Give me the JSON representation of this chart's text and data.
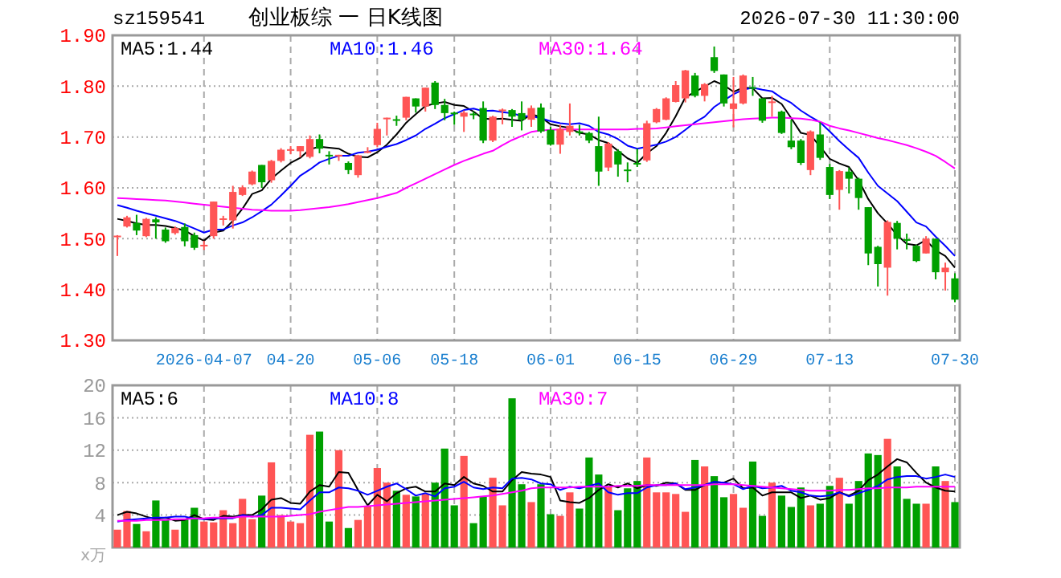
{
  "chart_data": [
    {
      "type": "candlestick",
      "title": "创业板综 一 日K线图",
      "annotations": [
        "sz159541",
        "2026-07-30 11:30:00"
      ],
      "categories": [
        null,
        null,
        null,
        null,
        null,
        null,
        null,
        null,
        null,
        "2026-04-07",
        null,
        null,
        null,
        null,
        null,
        null,
        null,
        null,
        "04-20",
        null,
        null,
        null,
        null,
        null,
        null,
        null,
        null,
        "05-06",
        null,
        null,
        null,
        null,
        null,
        null,
        null,
        "05-18",
        null,
        null,
        null,
        null,
        null,
        null,
        null,
        null,
        null,
        "06-01",
        null,
        null,
        null,
        null,
        null,
        null,
        null,
        null,
        "06-15",
        null,
        null,
        null,
        null,
        null,
        null,
        null,
        null,
        null,
        "06-29",
        null,
        null,
        null,
        null,
        null,
        null,
        null,
        null,
        null,
        "07-13",
        null,
        null,
        null,
        null,
        null,
        null,
        null,
        null,
        null,
        null,
        null,
        null,
        "07-30"
      ],
      "ohlc": [
        [
          1.503,
          1.507,
          1.466,
          1.506
        ],
        [
          1.524,
          1.545,
          1.522,
          1.542
        ],
        [
          1.531,
          1.547,
          1.507,
          1.516
        ],
        [
          1.505,
          1.541,
          1.503,
          1.539
        ],
        [
          1.538,
          1.542,
          1.5,
          1.532
        ],
        [
          1.518,
          1.522,
          1.492,
          1.495
        ],
        [
          1.511,
          1.524,
          1.508,
          1.521
        ],
        [
          1.523,
          1.53,
          1.485,
          1.495
        ],
        [
          1.507,
          1.512,
          1.478,
          1.482
        ],
        [
          1.486,
          1.496,
          1.478,
          1.488
        ],
        [
          1.505,
          1.573,
          1.5,
          1.573
        ],
        [
          1.538,
          1.545,
          1.526,
          1.54
        ],
        [
          1.536,
          1.604,
          1.52,
          1.592
        ],
        [
          1.586,
          1.605,
          1.584,
          1.601
        ],
        [
          1.607,
          1.634,
          1.605,
          1.632
        ],
        [
          1.645,
          1.645,
          1.6,
          1.611
        ],
        [
          1.615,
          1.655,
          1.61,
          1.653
        ],
        [
          1.653,
          1.678,
          1.65,
          1.675
        ],
        [
          1.674,
          1.682,
          1.666,
          1.676
        ],
        [
          1.672,
          1.682,
          1.66,
          1.682
        ],
        [
          1.661,
          1.703,
          1.658,
          1.696
        ],
        [
          1.696,
          1.705,
          1.668,
          1.677
        ],
        [
          1.665,
          1.672,
          1.646,
          1.663
        ],
        [
          1.663,
          1.665,
          1.653,
          1.665
        ],
        [
          1.649,
          1.652,
          1.627,
          1.635
        ],
        [
          1.625,
          1.665,
          1.62,
          1.664
        ],
        [
          1.67,
          1.68,
          1.668,
          1.672
        ],
        [
          1.684,
          1.728,
          1.68,
          1.716
        ],
        [
          1.736,
          1.738,
          1.703,
          1.738
        ],
        [
          1.735,
          1.742,
          1.722,
          1.733
        ],
        [
          1.738,
          1.779,
          1.733,
          1.779
        ],
        [
          1.776,
          1.776,
          1.748,
          1.76
        ],
        [
          1.76,
          1.797,
          1.75,
          1.797
        ],
        [
          1.807,
          1.81,
          1.755,
          1.763
        ],
        [
          1.763,
          1.775,
          1.733,
          1.747
        ],
        [
          1.748,
          1.75,
          1.724,
          1.746
        ],
        [
          1.74,
          1.752,
          1.71,
          1.748
        ],
        [
          1.746,
          1.75,
          1.735,
          1.744
        ],
        [
          1.757,
          1.77,
          1.688,
          1.693
        ],
        [
          1.693,
          1.742,
          1.69,
          1.74
        ],
        [
          1.752,
          1.756,
          1.725,
          1.754
        ],
        [
          1.753,
          1.755,
          1.72,
          1.74
        ],
        [
          1.747,
          1.77,
          1.713,
          1.734
        ],
        [
          1.734,
          1.762,
          1.72,
          1.757
        ],
        [
          1.758,
          1.766,
          1.708,
          1.711
        ],
        [
          1.714,
          1.72,
          1.683,
          1.685
        ],
        [
          1.685,
          1.724,
          1.667,
          1.716
        ],
        [
          1.71,
          1.766,
          1.703,
          1.722
        ],
        [
          1.711,
          1.724,
          1.703,
          1.708
        ],
        [
          1.708,
          1.71,
          1.688,
          1.693
        ],
        [
          1.682,
          1.74,
          1.604,
          1.632
        ],
        [
          1.64,
          1.69,
          1.633,
          1.687
        ],
        [
          1.672,
          1.676,
          1.622,
          1.646
        ],
        [
          1.636,
          1.65,
          1.611,
          1.634
        ],
        [
          1.649,
          1.677,
          1.641,
          1.647
        ],
        [
          1.654,
          1.732,
          1.651,
          1.727
        ],
        [
          1.729,
          1.757,
          1.727,
          1.755
        ],
        [
          1.734,
          1.778,
          1.733,
          1.776
        ],
        [
          1.769,
          1.81,
          1.768,
          1.802
        ],
        [
          1.776,
          1.832,
          1.768,
          1.831
        ],
        [
          1.821,
          1.826,
          1.778,
          1.781
        ],
        [
          1.781,
          1.806,
          1.77,
          1.804
        ],
        [
          1.857,
          1.878,
          1.826,
          1.83
        ],
        [
          1.823,
          1.823,
          1.76,
          1.766
        ],
        [
          1.755,
          1.818,
          1.719,
          1.766
        ],
        [
          1.766,
          1.823,
          1.764,
          1.821
        ],
        [
          1.798,
          1.818,
          1.781,
          1.796
        ],
        [
          1.776,
          1.776,
          1.728,
          1.732
        ],
        [
          1.768,
          1.781,
          1.74,
          1.77
        ],
        [
          1.75,
          1.752,
          1.706,
          1.708
        ],
        [
          1.693,
          1.734,
          1.676,
          1.68
        ],
        [
          1.693,
          1.696,
          1.645,
          1.649
        ],
        [
          1.635,
          1.713,
          1.625,
          1.711
        ],
        [
          1.705,
          1.729,
          1.655,
          1.659
        ],
        [
          1.641,
          1.647,
          1.578,
          1.586
        ],
        [
          1.596,
          1.635,
          1.557,
          1.633
        ],
        [
          1.632,
          1.64,
          1.589,
          1.618
        ],
        [
          1.618,
          1.62,
          1.557,
          1.58
        ],
        [
          1.562,
          1.562,
          1.448,
          1.471
        ],
        [
          1.484,
          1.486,
          1.406,
          1.45
        ],
        [
          1.443,
          1.536,
          1.388,
          1.533
        ],
        [
          1.531,
          1.535,
          1.479,
          1.5
        ],
        [
          1.499,
          1.51,
          1.479,
          1.497
        ],
        [
          1.486,
          1.488,
          1.454,
          1.456
        ],
        [
          1.471,
          1.505,
          1.471,
          1.5
        ],
        [
          1.5,
          1.5,
          1.42,
          1.434
        ],
        [
          1.434,
          1.453,
          1.398,
          1.443
        ],
        [
          1.422,
          1.432,
          1.375,
          1.38
        ]
      ],
      "colors": [
        "#ff5555",
        "#ff5555",
        "#00a000",
        "#ff5555",
        "#00a000",
        "#00a000",
        "#ff5555",
        "#00a000",
        "#00a000",
        "#ff5555",
        "#ff5555",
        "#ff5555",
        "#ff5555",
        "#ff5555",
        "#ff5555",
        "#00a000",
        "#ff5555",
        "#ff5555",
        "#ff5555",
        "#ff5555",
        "#ff5555",
        "#00a000",
        "#00a000",
        "#ff5555",
        "#00a000",
        "#ff5555",
        "#ff5555",
        "#ff5555",
        "#ff5555",
        "#00a000",
        "#ff5555",
        "#00a000",
        "#ff5555",
        "#00a000",
        "#00a000",
        "#00a000",
        "#ff5555",
        "#00a000",
        "#00a000",
        "#ff5555",
        "#ff5555",
        "#00a000",
        "#00a000",
        "#ff5555",
        "#00a000",
        "#00a000",
        "#ff5555",
        "#ff5555",
        "#00a000",
        "#00a000",
        "#00a000",
        "#ff5555",
        "#00a000",
        "#00a000",
        "#00a000",
        "#ff5555",
        "#ff5555",
        "#ff5555",
        "#ff5555",
        "#ff5555",
        "#00a000",
        "#ff5555",
        "#00a000",
        "#00a000",
        "#ff5555",
        "#ff5555",
        "#00a000",
        "#00a000",
        "#ff5555",
        "#00a000",
        "#00a000",
        "#00a000",
        "#ff5555",
        "#00a000",
        "#00a000",
        "#ff5555",
        "#00a000",
        "#00a000",
        "#00a000",
        "#00a000",
        "#ff5555",
        "#00a000",
        "#00a000",
        "#00a000",
        "#ff5555",
        "#00a000",
        "#ff5555",
        "#00a000"
      ],
      "series": [
        {
          "type": "line",
          "name": "MA5:1.44",
          "color": "#000000",
          "values": [
            1.539,
            1.535,
            1.53,
            1.527,
            1.527,
            1.525,
            1.521,
            1.516,
            1.505,
            1.496,
            1.512,
            1.516,
            1.535,
            1.559,
            1.588,
            1.595,
            1.618,
            1.634,
            1.649,
            1.659,
            1.676,
            1.681,
            1.679,
            1.677,
            1.667,
            1.661,
            1.66,
            1.67,
            1.685,
            1.705,
            1.728,
            1.745,
            1.761,
            1.766,
            1.769,
            1.763,
            1.761,
            1.75,
            1.736,
            1.735,
            1.736,
            1.734,
            1.732,
            1.745,
            1.739,
            1.725,
            1.721,
            1.718,
            1.708,
            1.705,
            1.694,
            1.688,
            1.673,
            1.658,
            1.649,
            1.668,
            1.682,
            1.708,
            1.741,
            1.778,
            1.789,
            1.799,
            1.81,
            1.802,
            1.789,
            1.797,
            1.796,
            1.776,
            1.777,
            1.765,
            1.737,
            1.708,
            1.704,
            1.681,
            1.657,
            1.648,
            1.641,
            1.615,
            1.578,
            1.55,
            1.53,
            1.507,
            1.49,
            1.487,
            1.497,
            1.477,
            1.466,
            1.443
          ]
        },
        {
          "type": "line",
          "name": "MA10:1.46",
          "color": "#0000ff",
          "values": [
            1.566,
            1.561,
            1.555,
            1.55,
            1.545,
            1.54,
            1.535,
            1.528,
            1.52,
            1.512,
            1.518,
            1.518,
            1.526,
            1.532,
            1.542,
            1.554,
            1.567,
            1.585,
            1.604,
            1.624,
            1.636,
            1.65,
            1.657,
            1.663,
            1.663,
            1.669,
            1.671,
            1.675,
            1.681,
            1.686,
            1.694,
            1.703,
            1.716,
            1.726,
            1.737,
            1.745,
            1.753,
            1.756,
            1.751,
            1.752,
            1.749,
            1.747,
            1.741,
            1.741,
            1.737,
            1.731,
            1.727,
            1.725,
            1.727,
            1.722,
            1.71,
            1.705,
            1.696,
            1.683,
            1.677,
            1.681,
            1.685,
            1.691,
            1.7,
            1.714,
            1.729,
            1.74,
            1.759,
            1.772,
            1.784,
            1.793,
            1.797,
            1.793,
            1.79,
            1.777,
            1.767,
            1.752,
            1.74,
            1.729,
            1.711,
            1.692,
            1.675,
            1.659,
            1.63,
            1.604,
            1.589,
            1.574,
            1.553,
            1.532,
            1.524,
            1.504,
            1.486,
            1.466
          ]
        },
        {
          "type": "line",
          "name": "MA30:1.64",
          "color": "#ff00ff",
          "values": [
            1.58,
            1.579,
            1.578,
            1.577,
            1.576,
            1.575,
            1.573,
            1.571,
            1.569,
            1.567,
            1.565,
            1.563,
            1.561,
            1.559,
            1.557,
            1.556,
            1.555,
            1.555,
            1.555,
            1.556,
            1.558,
            1.56,
            1.562,
            1.565,
            1.568,
            1.572,
            1.576,
            1.58,
            1.585,
            1.59,
            1.6,
            1.609,
            1.618,
            1.627,
            1.636,
            1.645,
            1.653,
            1.66,
            1.667,
            1.673,
            1.684,
            1.694,
            1.702,
            1.71,
            1.713,
            1.714,
            1.715,
            1.715,
            1.715,
            1.715,
            1.715,
            1.715,
            1.715,
            1.715,
            1.716,
            1.716,
            1.717,
            1.719,
            1.721,
            1.723,
            1.725,
            1.727,
            1.729,
            1.731,
            1.733,
            1.735,
            1.736,
            1.737,
            1.738,
            1.738,
            1.737,
            1.736,
            1.734,
            1.73,
            1.722,
            1.717,
            1.713,
            1.708,
            1.703,
            1.698,
            1.694,
            1.689,
            1.684,
            1.678,
            1.671,
            1.663,
            1.651,
            1.638
          ]
        }
      ],
      "ylim": [
        1.3,
        1.9
      ],
      "yticks": [
        {
          "value": 1.3,
          "label": "1.30"
        },
        {
          "value": 1.4,
          "label": "1.40"
        },
        {
          "value": 1.5,
          "label": "1.50"
        },
        {
          "value": 1.6,
          "label": "1.60"
        },
        {
          "value": 1.7,
          "label": "1.70"
        },
        {
          "value": 1.8,
          "label": "1.80"
        },
        {
          "value": 1.9,
          "label": "1.90"
        }
      ],
      "grid": true,
      "legend": "top"
    },
    {
      "type": "bar",
      "ylabel": "x万",
      "categories": [
        null,
        null,
        null,
        null,
        null,
        null,
        null,
        null,
        null,
        null,
        null,
        null,
        null,
        null,
        null,
        null,
        null,
        null,
        null,
        null,
        null,
        null,
        null,
        null,
        null,
        null,
        null,
        null,
        null,
        null,
        null,
        null,
        null,
        null,
        null,
        null,
        null,
        null,
        null,
        null,
        null,
        null,
        null,
        null,
        null,
        null,
        null,
        null,
        null,
        null,
        null,
        null,
        null,
        null,
        null,
        null,
        null,
        null,
        null,
        null,
        null,
        null,
        null,
        null,
        null,
        null,
        null,
        null,
        null,
        null,
        null,
        null,
        null,
        null,
        null,
        null,
        null,
        null,
        null,
        null,
        null,
        null,
        null,
        null,
        null,
        null,
        null,
        null
      ],
      "series": [
        {
          "type": "bar",
          "colors": [
            "#ff5555",
            "#ff5555",
            "#00a000",
            "#ff5555",
            "#00a000",
            "#00a000",
            "#ff5555",
            "#00a000",
            "#00a000",
            "#ff5555",
            "#ff5555",
            "#ff5555",
            "#ff5555",
            "#ff5555",
            "#ff5555",
            "#00a000",
            "#ff5555",
            "#ff5555",
            "#ff5555",
            "#ff5555",
            "#ff5555",
            "#00a000",
            "#00a000",
            "#ff5555",
            "#00a000",
            "#ff5555",
            "#ff5555",
            "#ff5555",
            "#ff5555",
            "#00a000",
            "#ff5555",
            "#00a000",
            "#ff5555",
            "#00a000",
            "#00a000",
            "#00a000",
            "#ff5555",
            "#00a000",
            "#00a000",
            "#ff5555",
            "#ff5555",
            "#00a000",
            "#00a000",
            "#ff5555",
            "#00a000",
            "#00a000",
            "#ff5555",
            "#ff5555",
            "#00a000",
            "#00a000",
            "#00a000",
            "#ff5555",
            "#00a000",
            "#00a000",
            "#00a000",
            "#ff5555",
            "#ff5555",
            "#ff5555",
            "#ff5555",
            "#ff5555",
            "#00a000",
            "#ff5555",
            "#00a000",
            "#00a000",
            "#ff5555",
            "#ff5555",
            "#00a000",
            "#00a000",
            "#ff5555",
            "#00a000",
            "#00a000",
            "#00a000",
            "#ff5555",
            "#00a000",
            "#00a000",
            "#ff5555",
            "#00a000",
            "#00a000",
            "#00a000",
            "#00a000",
            "#ff5555",
            "#00a000",
            "#00a000",
            "#00a000",
            "#ff5555",
            "#00a000",
            "#ff5555",
            "#00a000"
          ],
          "values": [
            2.2,
            4.5,
            2.9,
            2.0,
            5.8,
            3.5,
            2.2,
            3.5,
            4.9,
            3.2,
            3.1,
            4.6,
            3.0,
            6.0,
            3.5,
            6.4,
            10.5,
            4.0,
            3.2,
            3.0,
            13.9,
            14.3,
            3.2,
            12.0,
            2.4,
            3.4,
            5.1,
            9.8,
            8.0,
            7.0,
            6.5,
            6.3,
            6.6,
            8.0,
            12.2,
            5.2,
            11.3,
            3.0,
            6.3,
            8.6,
            5.2,
            18.4,
            7.8,
            5.6,
            7.8,
            4.1,
            3.9,
            6.8,
            4.8,
            11.1,
            9.0,
            7.5,
            4.6,
            7.3,
            8.2,
            11.1,
            6.8,
            6.8,
            6.6,
            4.4,
            10.8,
            10.0,
            8.8,
            6.2,
            6.6,
            4.9,
            10.6,
            3.9,
            8.0,
            6.4,
            5.0,
            7.4,
            5.2,
            5.4,
            7.6,
            8.6,
            5.4,
            8.2,
            11.6,
            11.4,
            13.4,
            10.0,
            6.0,
            5.4,
            5.4,
            10.0,
            8.2,
            5.6
          ]
        },
        {
          "type": "line",
          "name": "MA5:6",
          "color": "#000000",
          "values": [
            4.0,
            4.4,
            4.2,
            3.8,
            3.5,
            3.7,
            3.3,
            3.4,
            4.0,
            3.5,
            3.4,
            3.9,
            3.8,
            4.0,
            4.0,
            4.7,
            5.9,
            6.1,
            5.5,
            5.4,
            6.9,
            7.7,
            7.5,
            9.3,
            9.2,
            7.1,
            5.2,
            6.5,
            5.7,
            6.7,
            7.3,
            7.5,
            6.9,
            6.9,
            7.9,
            7.7,
            8.7,
            7.9,
            7.6,
            6.9,
            6.9,
            8.3,
            9.3,
            9.1,
            9.0,
            8.7,
            5.8,
            5.6,
            5.5,
            6.1,
            7.1,
            7.8,
            7.4,
            7.9,
            7.3,
            7.7,
            7.6,
            8.0,
            7.9,
            7.1,
            7.1,
            7.7,
            8.1,
            8.0,
            8.5,
            7.3,
            7.4,
            6.4,
            6.8,
            6.8,
            6.8,
            6.1,
            6.4,
            5.9,
            6.1,
            6.8,
            6.4,
            7.0,
            8.3,
            9.0,
            10.0,
            10.9,
            10.5,
            9.2,
            8.0,
            7.4,
            7.0,
            6.9
          ]
        },
        {
          "type": "line",
          "name": "MA10:8",
          "color": "#0000ff",
          "values": [
            3.2,
            3.4,
            3.5,
            3.6,
            3.7,
            3.7,
            3.8,
            3.8,
            3.6,
            3.5,
            3.6,
            3.6,
            3.6,
            4.0,
            3.8,
            4.0,
            4.9,
            4.9,
            4.8,
            4.7,
            5.8,
            6.8,
            6.8,
            7.4,
            7.3,
            7.0,
            6.5,
            7.0,
            7.5,
            7.9,
            7.2,
            6.4,
            6.7,
            6.3,
            7.3,
            7.5,
            8.1,
            7.4,
            7.2,
            7.4,
            7.3,
            8.5,
            8.6,
            8.4,
            7.9,
            7.8,
            7.1,
            7.5,
            7.3,
            7.6,
            7.9,
            6.8,
            6.5,
            6.7,
            6.7,
            7.4,
            7.7,
            7.7,
            7.9,
            7.2,
            7.4,
            7.7,
            8.1,
            8.0,
            7.8,
            7.2,
            7.6,
            7.3,
            7.4,
            7.6,
            7.0,
            6.8,
            6.4,
            6.3,
            6.4,
            6.8,
            6.3,
            6.7,
            7.1,
            7.6,
            8.4,
            8.7,
            8.8,
            8.8,
            8.5,
            8.7,
            9.0,
            8.7
          ]
        },
        {
          "type": "line",
          "name": "MA30:7",
          "color": "#ff00ff",
          "values": [
            3.3,
            3.3,
            3.3,
            3.4,
            3.4,
            3.4,
            3.5,
            3.5,
            3.6,
            3.6,
            3.7,
            3.7,
            3.7,
            3.8,
            3.8,
            3.8,
            3.8,
            3.8,
            3.9,
            4.0,
            4.1,
            4.4,
            4.6,
            4.8,
            5.0,
            5.0,
            5.1,
            5.2,
            5.3,
            5.4,
            5.5,
            5.6,
            5.7,
            5.8,
            5.9,
            6.0,
            6.1,
            6.2,
            6.3,
            6.4,
            6.6,
            6.8,
            7.0,
            7.3,
            7.4,
            7.4,
            7.4,
            7.4,
            7.5,
            7.5,
            7.5,
            7.5,
            7.6,
            7.6,
            7.6,
            7.7,
            7.7,
            7.7,
            7.7,
            7.7,
            7.7,
            7.7,
            7.8,
            7.8,
            7.8,
            7.7,
            7.6,
            7.5,
            7.4,
            7.3,
            7.2,
            7.1,
            7.0,
            7.0,
            7.0,
            7.1,
            7.1,
            7.2,
            7.3,
            7.3,
            7.4,
            7.4,
            7.4,
            7.5,
            7.5,
            7.5,
            7.5,
            7.5
          ]
        }
      ],
      "ylim": [
        0,
        20
      ],
      "yticks": [
        4,
        8,
        12,
        16,
        20
      ],
      "grid": true,
      "legend": "top"
    }
  ]
}
